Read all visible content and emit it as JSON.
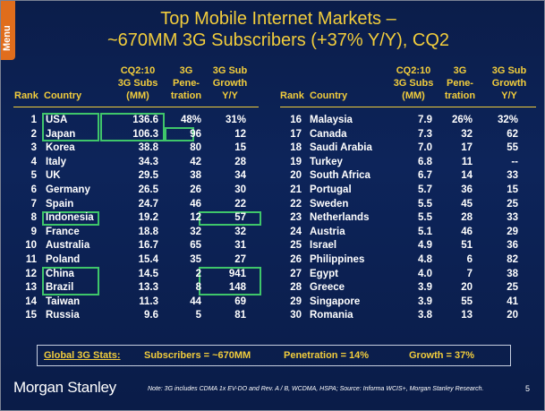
{
  "menu_label": "Menu",
  "title_line1": "Top Mobile Internet Markets –",
  "title_line2": "~670MM 3G Subscribers (+37% Y/Y), CQ2",
  "headers": {
    "rank": "Rank",
    "country": "Country",
    "subs": [
      "CQ2:10",
      "3G Subs",
      "(MM)"
    ],
    "pen": [
      "3G",
      "Pene-",
      "tration"
    ],
    "growth": [
      "3G Sub",
      "Growth",
      "Y/Y"
    ]
  },
  "left_rows": [
    {
      "rank": "1",
      "country": "USA",
      "subs": "136.6",
      "pen": "48%",
      "growth": "31%"
    },
    {
      "rank": "2",
      "country": "Japan",
      "subs": "106.3",
      "pen": "96",
      "growth": "12"
    },
    {
      "rank": "3",
      "country": "Korea",
      "subs": "38.8",
      "pen": "80",
      "growth": "15"
    },
    {
      "rank": "4",
      "country": "Italy",
      "subs": "34.3",
      "pen": "42",
      "growth": "28"
    },
    {
      "rank": "5",
      "country": "UK",
      "subs": "29.5",
      "pen": "38",
      "growth": "34"
    },
    {
      "rank": "6",
      "country": "Germany",
      "subs": "26.5",
      "pen": "26",
      "growth": "30"
    },
    {
      "rank": "7",
      "country": "Spain",
      "subs": "24.7",
      "pen": "46",
      "growth": "22"
    },
    {
      "rank": "8",
      "country": "Indonesia",
      "subs": "19.2",
      "pen": "12",
      "growth": "57"
    },
    {
      "rank": "9",
      "country": "France",
      "subs": "18.8",
      "pen": "32",
      "growth": "32"
    },
    {
      "rank": "10",
      "country": "Australia",
      "subs": "16.7",
      "pen": "65",
      "growth": "31"
    },
    {
      "rank": "11",
      "country": "Poland",
      "subs": "15.4",
      "pen": "35",
      "growth": "27"
    },
    {
      "rank": "12",
      "country": "China",
      "subs": "14.5",
      "pen": "2",
      "growth": "941"
    },
    {
      "rank": "13",
      "country": "Brazil",
      "subs": "13.3",
      "pen": "8",
      "growth": "148"
    },
    {
      "rank": "14",
      "country": "Taiwan",
      "subs": "11.3",
      "pen": "44",
      "growth": "69"
    },
    {
      "rank": "15",
      "country": "Russia",
      "subs": "9.6",
      "pen": "5",
      "growth": "81"
    }
  ],
  "right_rows": [
    {
      "rank": "16",
      "country": "Malaysia",
      "subs": "7.9",
      "pen": "26%",
      "growth": "32%"
    },
    {
      "rank": "17",
      "country": "Canada",
      "subs": "7.3",
      "pen": "32",
      "growth": "62"
    },
    {
      "rank": "18",
      "country": "Saudi Arabia",
      "subs": "7.0",
      "pen": "17",
      "growth": "55"
    },
    {
      "rank": "19",
      "country": "Turkey",
      "subs": "6.8",
      "pen": "11",
      "growth": "--"
    },
    {
      "rank": "20",
      "country": "South Africa",
      "subs": "6.7",
      "pen": "14",
      "growth": "33"
    },
    {
      "rank": "21",
      "country": "Portugal",
      "subs": "5.7",
      "pen": "36",
      "growth": "15"
    },
    {
      "rank": "22",
      "country": "Sweden",
      "subs": "5.5",
      "pen": "45",
      "growth": "25"
    },
    {
      "rank": "23",
      "country": "Netherlands",
      "subs": "5.5",
      "pen": "28",
      "growth": "33"
    },
    {
      "rank": "24",
      "country": "Austria",
      "subs": "5.1",
      "pen": "46",
      "growth": "29"
    },
    {
      "rank": "25",
      "country": "Israel",
      "subs": "4.9",
      "pen": "51",
      "growth": "36"
    },
    {
      "rank": "26",
      "country": "Philippines",
      "subs": "4.8",
      "pen": "6",
      "growth": "82"
    },
    {
      "rank": "27",
      "country": "Egypt",
      "subs": "4.0",
      "pen": "7",
      "growth": "38"
    },
    {
      "rank": "28",
      "country": "Greece",
      "subs": "3.9",
      "pen": "20",
      "growth": "25"
    },
    {
      "rank": "29",
      "country": "Singapore",
      "subs": "3.9",
      "pen": "55",
      "growth": "41"
    },
    {
      "rank": "30",
      "country": "Romania",
      "subs": "3.8",
      "pen": "13",
      "growth": "20"
    }
  ],
  "stats": {
    "label": "Global 3G Stats:",
    "subscribers": "Subscribers = ~670MM",
    "penetration": "Penetration = 14%",
    "growth": "Growth = 37%"
  },
  "logo": "Morgan Stanley",
  "note": "Note: 3G includes CDMA 1x EV-DO and Rev. A / B, WCDMA, HSPA; Source: Informa WCIS+, Morgan Stanley Research.",
  "page_number": "5",
  "colors": {
    "background": "#0b1d4a",
    "accent": "#f2cd3c",
    "highlight": "#3fc66a",
    "menu_tab": "#e06d1c"
  }
}
